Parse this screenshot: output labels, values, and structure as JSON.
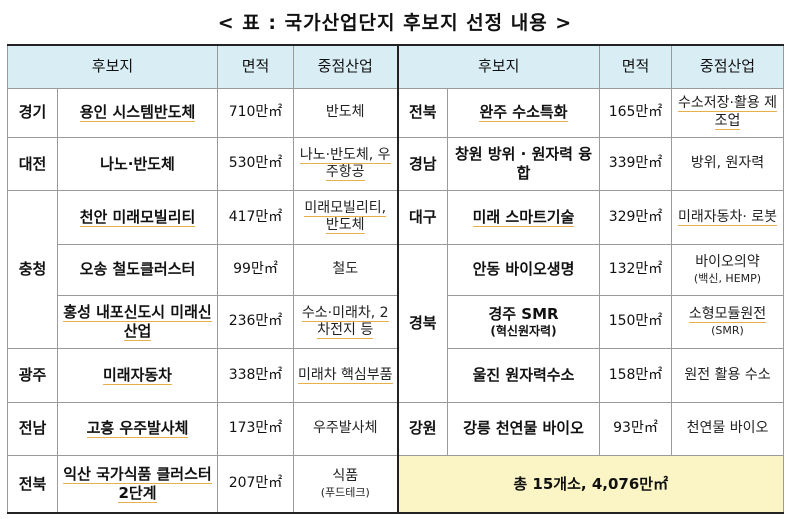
{
  "title": "< 표 : 국가산업단지 후보지 선정 내용 >",
  "headers": {
    "site": "후보지",
    "area": "면적",
    "industry": "중점산업"
  },
  "left": [
    {
      "region": "경기",
      "site": "용인 시스템반도체",
      "area": "710만㎡",
      "industry": "반도체"
    },
    {
      "region": "대전",
      "site": "나노·반도체",
      "area": "530만㎡",
      "industry": "나노·반도체, 우주항공"
    },
    {
      "region": "충청",
      "site": "천안 미래모빌리티",
      "area": "417만㎡",
      "industry": "미래모빌리티, 반도체"
    },
    {
      "region": "",
      "site": "오송 철도클러스터",
      "area": "99만㎡",
      "industry": "철도"
    },
    {
      "region": "",
      "site": "홍성 내포신도시 미래신산업",
      "area": "236만㎡",
      "industry": "수소·미래차, 2차전지 등"
    },
    {
      "region": "광주",
      "site": "미래자동차",
      "area": "338만㎡",
      "industry": "미래차 핵심부품"
    },
    {
      "region": "전남",
      "site": "고흥 우주발사체",
      "area": "173만㎡",
      "industry": "우주발사체"
    },
    {
      "region": "전북",
      "site": "익산 국가식품 클러스터 2단계",
      "area": "207만㎡",
      "industry": "식품",
      "industry_sub": "(푸드테크)"
    }
  ],
  "right": [
    {
      "region": "전북",
      "site": "완주 수소특화",
      "area": "165만㎡",
      "industry": "수소저장·활용 제조업"
    },
    {
      "region": "경남",
      "site": "창원 방위 · 원자력 융합",
      "area": "339만㎡",
      "industry": "방위, 원자력"
    },
    {
      "region": "대구",
      "site": "미래 스마트기술",
      "area": "329만㎡",
      "industry": "미래자동차· 로봇"
    },
    {
      "region": "경북",
      "site": "안동 바이오생명",
      "area": "132만㎡",
      "industry": "바이오의약",
      "industry_sub": "(백신, HEMP)"
    },
    {
      "region": "",
      "site": "경주 SMR",
      "site_sub": "(혁신원자력)",
      "area": "150만㎡",
      "industry": "소형모듈원전",
      "industry_sub": "(SMR)"
    },
    {
      "region": "",
      "site": "울진 원자력수소",
      "area": "158만㎡",
      "industry": "원전 활용 수소"
    },
    {
      "region": "강원",
      "site": "강릉 천연물 바이오",
      "area": "93만㎡",
      "industry": "천연물 바이오"
    }
  ],
  "total": "총 15개소, 4,076만㎡",
  "colors": {
    "header_bg": "#d9edf4",
    "total_bg": "#fbf5c6",
    "underline": "#e8b04a"
  }
}
